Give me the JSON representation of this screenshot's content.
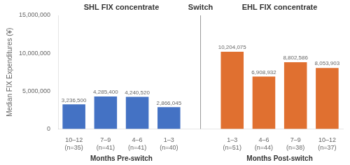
{
  "chart_data": {
    "type": "bar",
    "ylabel": "Median FIX Expenditures (¥)",
    "categories": [
      "10–12\n(n=35)",
      "7–9\n(n=41)",
      "4–6\n(n=41)",
      "1–3\n(n=40)",
      "1–3\n(n=51)",
      "4–6\n(n=44)",
      "7–9\n(n=38)",
      "10–12\n(n=37)"
    ],
    "series": [
      {
        "title": "SHL FIX concentrate",
        "xlabel": "Months Pre-switch",
        "color": "#4472C4",
        "values": [
          3236500,
          4285400,
          4240520,
          2866045,
          null,
          null,
          null,
          null
        ],
        "value_labels": [
          "3,236,500",
          "4,285,400",
          "4,240,520",
          "2,866,045",
          null,
          null,
          null,
          null
        ]
      },
      {
        "title": "EHL FIX concentrate",
        "xlabel": "Months Post-switch",
        "color": "#E07030",
        "values": [
          null,
          null,
          null,
          null,
          10204075,
          6908932,
          8802586,
          8053903
        ],
        "value_labels": [
          null,
          null,
          null,
          null,
          "10,204,075",
          "6,908,932",
          "8,802,586",
          "8,053,903"
        ]
      }
    ],
    "annotations": [
      {
        "text": "Switch"
      }
    ],
    "data_labels": true,
    "ylim": [
      0,
      15000000
    ],
    "yticks": [
      0,
      {
        "value": 5000000,
        "label": "5,000,000"
      },
      {
        "value": 10000000,
        "label": "10,000,000"
      },
      {
        "value": 15000000,
        "label": "15,000,000"
      }
    ],
    "grid": false
  }
}
